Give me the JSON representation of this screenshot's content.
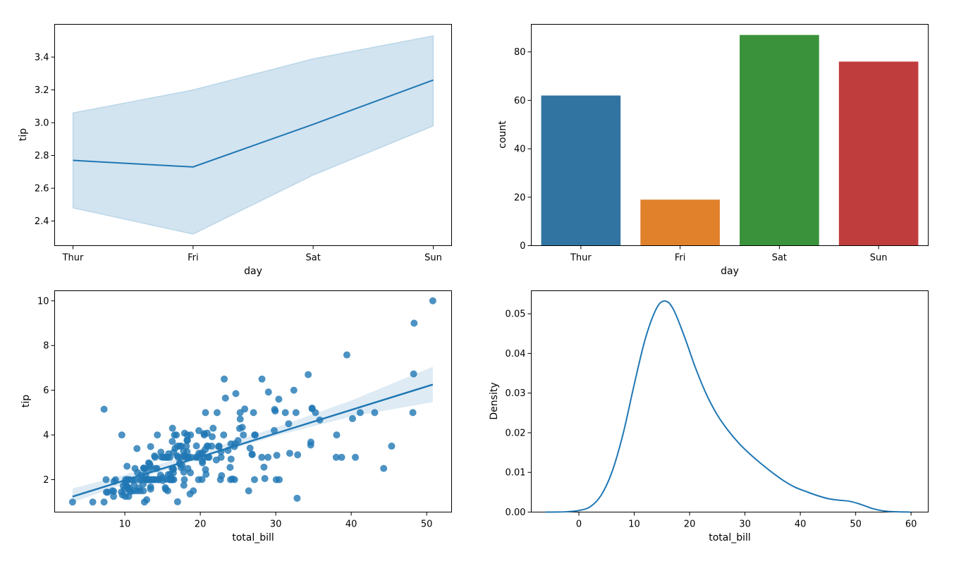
{
  "chart_data": [
    {
      "type": "line",
      "x": [
        "Thur",
        "Fri",
        "Sat",
        "Sun"
      ],
      "y": [
        2.77,
        2.73,
        2.99,
        3.26
      ],
      "ci_lower": [
        2.48,
        2.32,
        2.68,
        2.98
      ],
      "ci_upper": [
        3.06,
        3.2,
        3.39,
        3.53
      ],
      "xlabel": "day",
      "ylabel": "tip",
      "ylim": [
        2.25,
        3.6
      ],
      "yticks": [
        2.4,
        2.6,
        2.8,
        3.0,
        3.2,
        3.4
      ],
      "ytick_labels": [
        "2.4",
        "2.6",
        "2.8",
        "3.0",
        "3.2",
        "3.4"
      ],
      "color": "#1f77b4",
      "band_color": "#1f77b4",
      "grid": false
    },
    {
      "type": "bar",
      "categories": [
        "Thur",
        "Fri",
        "Sat",
        "Sun"
      ],
      "values": [
        62,
        19,
        87,
        76
      ],
      "colors": [
        "#3274a1",
        "#e1812c",
        "#3a923a",
        "#c03d3e"
      ],
      "xlabel": "day",
      "ylabel": "count",
      "ylim": [
        0,
        91.4
      ],
      "yticks": [
        0,
        20,
        40,
        60,
        80
      ],
      "ytick_labels": [
        "0",
        "20",
        "40",
        "60",
        "80"
      ],
      "grid": false
    },
    {
      "type": "scatter",
      "xlabel": "total_bill",
      "ylabel": "tip",
      "xlim": [
        0.7,
        53.3
      ],
      "ylim": [
        0.55,
        10.45
      ],
      "xticks": [
        10,
        20,
        30,
        40,
        50
      ],
      "xtick_labels": [
        "10",
        "20",
        "30",
        "40",
        "50"
      ],
      "yticks": [
        2,
        4,
        6,
        8,
        10
      ],
      "ytick_labels": [
        "2",
        "4",
        "6",
        "8",
        "10"
      ],
      "color": "#1f77b4",
      "regression": {
        "slope": 0.105,
        "intercept": 0.92,
        "x_range": [
          3.07,
          50.81
        ]
      },
      "ci_band": {
        "x": [
          3.07,
          10,
          20,
          30,
          40,
          50.81
        ],
        "lower": [
          0.98,
          1.82,
          2.94,
          3.96,
          4.82,
          5.47
        ],
        "upper": [
          1.61,
          2.22,
          3.24,
          4.33,
          5.54,
          7.05
        ]
      },
      "points": [
        [
          16.99,
          1.01
        ],
        [
          10.34,
          1.66
        ],
        [
          21.01,
          3.5
        ],
        [
          23.68,
          3.31
        ],
        [
          24.59,
          3.61
        ],
        [
          25.29,
          4.71
        ],
        [
          8.77,
          2.0
        ],
        [
          26.88,
          3.12
        ],
        [
          15.04,
          1.96
        ],
        [
          14.78,
          3.23
        ],
        [
          10.27,
          1.71
        ],
        [
          35.26,
          5.0
        ],
        [
          15.42,
          1.57
        ],
        [
          18.43,
          3.0
        ],
        [
          14.83,
          3.02
        ],
        [
          21.58,
          3.92
        ],
        [
          10.33,
          1.67
        ],
        [
          16.29,
          3.71
        ],
        [
          16.97,
          3.5
        ],
        [
          20.65,
          3.35
        ],
        [
          17.92,
          4.08
        ],
        [
          20.29,
          2.75
        ],
        [
          15.77,
          2.23
        ],
        [
          39.42,
          7.58
        ],
        [
          19.82,
          3.18
        ],
        [
          17.81,
          2.34
        ],
        [
          13.37,
          2.0
        ],
        [
          12.69,
          2.0
        ],
        [
          21.7,
          4.3
        ],
        [
          19.65,
          3.0
        ],
        [
          9.55,
          1.45
        ],
        [
          18.35,
          2.5
        ],
        [
          15.06,
          3.0
        ],
        [
          20.69,
          2.45
        ],
        [
          17.78,
          3.27
        ],
        [
          24.06,
          3.6
        ],
        [
          16.31,
          2.0
        ],
        [
          16.93,
          3.07
        ],
        [
          18.69,
          2.31
        ],
        [
          31.27,
          5.0
        ],
        [
          16.04,
          2.24
        ],
        [
          17.46,
          2.54
        ],
        [
          13.94,
          3.06
        ],
        [
          9.68,
          1.32
        ],
        [
          30.4,
          5.6
        ],
        [
          18.29,
          3.0
        ],
        [
          22.23,
          5.0
        ],
        [
          32.4,
          6.0
        ],
        [
          28.55,
          2.05
        ],
        [
          18.04,
          3.0
        ],
        [
          12.54,
          2.5
        ],
        [
          10.29,
          2.6
        ],
        [
          34.81,
          5.2
        ],
        [
          9.94,
          1.56
        ],
        [
          25.56,
          4.34
        ],
        [
          19.49,
          3.51
        ],
        [
          38.01,
          3.0
        ],
        [
          26.41,
          1.5
        ],
        [
          11.24,
          1.76
        ],
        [
          48.27,
          6.73
        ],
        [
          20.29,
          3.21
        ],
        [
          13.81,
          2.0
        ],
        [
          11.02,
          1.98
        ],
        [
          18.29,
          3.76
        ],
        [
          17.59,
          2.64
        ],
        [
          20.08,
          3.15
        ],
        [
          16.45,
          2.47
        ],
        [
          3.07,
          1.0
        ],
        [
          20.23,
          2.01
        ],
        [
          15.01,
          2.09
        ],
        [
          12.02,
          1.97
        ],
        [
          17.07,
          3.0
        ],
        [
          26.86,
          3.14
        ],
        [
          25.28,
          5.0
        ],
        [
          14.73,
          2.2
        ],
        [
          10.51,
          1.25
        ],
        [
          17.92,
          3.08
        ],
        [
          27.2,
          4.0
        ],
        [
          22.76,
          3.0
        ],
        [
          17.29,
          2.71
        ],
        [
          19.44,
          3.0
        ],
        [
          16.66,
          3.4
        ],
        [
          10.07,
          1.83
        ],
        [
          32.68,
          5.0
        ],
        [
          15.98,
          2.03
        ],
        [
          34.83,
          5.17
        ],
        [
          13.03,
          2.0
        ],
        [
          18.28,
          4.0
        ],
        [
          24.71,
          5.85
        ],
        [
          21.16,
          3.0
        ],
        [
          28.97,
          3.0
        ],
        [
          22.49,
          3.5
        ],
        [
          5.75,
          1.0
        ],
        [
          16.32,
          4.3
        ],
        [
          22.75,
          3.25
        ],
        [
          40.17,
          4.73
        ],
        [
          27.28,
          4.0
        ],
        [
          12.03,
          1.5
        ],
        [
          21.01,
          3.0
        ],
        [
          12.46,
          1.5
        ],
        [
          11.35,
          2.5
        ],
        [
          15.38,
          3.0
        ],
        [
          44.3,
          2.5
        ],
        [
          22.42,
          3.48
        ],
        [
          20.92,
          4.08
        ],
        [
          15.36,
          1.64
        ],
        [
          20.49,
          4.06
        ],
        [
          25.21,
          4.29
        ],
        [
          18.24,
          3.76
        ],
        [
          14.31,
          4.0
        ],
        [
          14.0,
          3.0
        ],
        [
          7.25,
          1.0
        ],
        [
          38.07,
          4.0
        ],
        [
          23.95,
          2.55
        ],
        [
          25.71,
          4.0
        ],
        [
          17.31,
          3.5
        ],
        [
          29.93,
          5.07
        ],
        [
          10.65,
          1.5
        ],
        [
          12.43,
          1.8
        ],
        [
          24.08,
          2.92
        ],
        [
          11.69,
          2.31
        ],
        [
          13.42,
          1.68
        ],
        [
          14.26,
          2.5
        ],
        [
          15.95,
          2.0
        ],
        [
          12.48,
          2.52
        ],
        [
          29.8,
          4.2
        ],
        [
          8.52,
          1.48
        ],
        [
          14.52,
          2.0
        ],
        [
          11.38,
          2.0
        ],
        [
          22.82,
          2.18
        ],
        [
          19.08,
          1.5
        ],
        [
          20.27,
          2.83
        ],
        [
          11.17,
          1.5
        ],
        [
          12.26,
          2.0
        ],
        [
          18.26,
          3.25
        ],
        [
          8.51,
          1.25
        ],
        [
          10.33,
          2.0
        ],
        [
          14.15,
          2.0
        ],
        [
          16.0,
          2.0
        ],
        [
          13.16,
          2.75
        ],
        [
          17.47,
          3.5
        ],
        [
          34.3,
          6.7
        ],
        [
          41.19,
          5.0
        ],
        [
          27.05,
          5.0
        ],
        [
          16.43,
          2.3
        ],
        [
          8.35,
          1.5
        ],
        [
          18.64,
          1.36
        ],
        [
          11.87,
          1.63
        ],
        [
          9.78,
          1.73
        ],
        [
          7.51,
          2.0
        ],
        [
          14.07,
          2.5
        ],
        [
          13.13,
          2.0
        ],
        [
          17.26,
          2.74
        ],
        [
          24.55,
          2.0
        ],
        [
          19.77,
          2.0
        ],
        [
          29.85,
          5.14
        ],
        [
          48.17,
          5.0
        ],
        [
          25.0,
          3.75
        ],
        [
          13.39,
          2.61
        ],
        [
          16.49,
          2.0
        ],
        [
          21.5,
          3.5
        ],
        [
          12.66,
          2.5
        ],
        [
          16.21,
          2.0
        ],
        [
          13.81,
          2.0
        ],
        [
          17.51,
          3.0
        ],
        [
          24.52,
          3.48
        ],
        [
          20.76,
          2.24
        ],
        [
          31.71,
          4.5
        ],
        [
          10.59,
          1.61
        ],
        [
          10.63,
          2.0
        ],
        [
          50.81,
          10.0
        ],
        [
          15.81,
          3.16
        ],
        [
          7.25,
          5.15
        ],
        [
          31.85,
          3.18
        ],
        [
          16.82,
          4.0
        ],
        [
          32.9,
          3.11
        ],
        [
          17.89,
          2.0
        ],
        [
          14.48,
          2.0
        ],
        [
          9.6,
          4.0
        ],
        [
          34.63,
          3.55
        ],
        [
          34.65,
          3.68
        ],
        [
          23.33,
          5.65
        ],
        [
          45.35,
          3.5
        ],
        [
          23.17,
          6.5
        ],
        [
          40.55,
          3.0
        ],
        [
          20.69,
          5.0
        ],
        [
          20.9,
          3.5
        ],
        [
          30.46,
          2.0
        ],
        [
          18.15,
          3.5
        ],
        [
          23.1,
          4.0
        ],
        [
          15.69,
          1.5
        ],
        [
          19.81,
          4.19
        ],
        [
          28.44,
          2.56
        ],
        [
          15.48,
          2.02
        ],
        [
          16.58,
          4.0
        ],
        [
          7.56,
          1.44
        ],
        [
          10.34,
          2.0
        ],
        [
          43.11,
          5.0
        ],
        [
          13.0,
          2.0
        ],
        [
          13.51,
          2.0
        ],
        [
          18.71,
          4.0
        ],
        [
          12.74,
          2.01
        ],
        [
          13.0,
          2.0
        ],
        [
          16.4,
          2.5
        ],
        [
          20.53,
          4.0
        ],
        [
          16.47,
          3.23
        ],
        [
          26.59,
          3.41
        ],
        [
          38.73,
          3.0
        ],
        [
          24.27,
          2.03
        ],
        [
          12.76,
          2.23
        ],
        [
          30.06,
          2.0
        ],
        [
          25.89,
          5.16
        ],
        [
          48.33,
          9.0
        ],
        [
          13.27,
          2.5
        ],
        [
          28.17,
          6.5
        ],
        [
          12.9,
          1.1
        ],
        [
          28.15,
          3.0
        ],
        [
          11.59,
          1.5
        ],
        [
          7.74,
          1.44
        ],
        [
          30.14,
          3.09
        ],
        [
          12.16,
          2.2
        ],
        [
          13.42,
          3.48
        ],
        [
          8.58,
          1.92
        ],
        [
          15.98,
          3.0
        ],
        [
          13.42,
          1.58
        ],
        [
          16.27,
          2.5
        ],
        [
          10.09,
          2.0
        ],
        [
          20.45,
          3.0
        ],
        [
          13.28,
          2.72
        ],
        [
          22.12,
          2.88
        ],
        [
          24.01,
          2.0
        ],
        [
          15.69,
          3.0
        ],
        [
          11.61,
          3.39
        ],
        [
          10.77,
          1.47
        ],
        [
          15.53,
          3.0
        ],
        [
          10.07,
          1.25
        ],
        [
          12.6,
          1.0
        ],
        [
          32.83,
          1.17
        ],
        [
          35.83,
          4.67
        ],
        [
          29.03,
          5.92
        ],
        [
          27.18,
          2.0
        ],
        [
          22.67,
          2.0
        ],
        [
          17.82,
          1.75
        ],
        [
          18.78,
          3.0
        ]
      ],
      "grid": false
    },
    {
      "type": "line",
      "subtype": "kde",
      "xlabel": "total_bill",
      "ylabel": "Density",
      "xlim": [
        -8.6,
        63.1
      ],
      "ylim": [
        0,
        0.0558
      ],
      "xticks": [
        0,
        10,
        20,
        30,
        40,
        50,
        60
      ],
      "xtick_labels": [
        "0",
        "10",
        "20",
        "30",
        "40",
        "50",
        "60"
      ],
      "yticks": [
        0,
        0.01,
        0.02,
        0.03,
        0.04,
        0.05
      ],
      "ytick_labels": [
        "0.00",
        "0.01",
        "0.02",
        "0.03",
        "0.04",
        "0.05"
      ],
      "x": [
        -6,
        -4,
        -2,
        0,
        2,
        4,
        6,
        8,
        10,
        12,
        14,
        15.5,
        17,
        19,
        21,
        23,
        25,
        27,
        29,
        31,
        33,
        35,
        37,
        39,
        41,
        43,
        45,
        47,
        49,
        51,
        53,
        55,
        57,
        59.9
      ],
      "y": [
        0.0,
        2e-05,
        0.0001,
        0.0004,
        0.0013,
        0.0042,
        0.0102,
        0.0198,
        0.0322,
        0.0437,
        0.0513,
        0.0532,
        0.0513,
        0.0445,
        0.0366,
        0.0298,
        0.0245,
        0.0205,
        0.0172,
        0.0145,
        0.0121,
        0.0099,
        0.0079,
        0.0063,
        0.0052,
        0.0042,
        0.0034,
        0.003,
        0.0027,
        0.0019,
        0.0009,
        0.0003,
        0.0001,
        0.0
      ],
      "color": "#1f77b4",
      "grid": false
    }
  ]
}
